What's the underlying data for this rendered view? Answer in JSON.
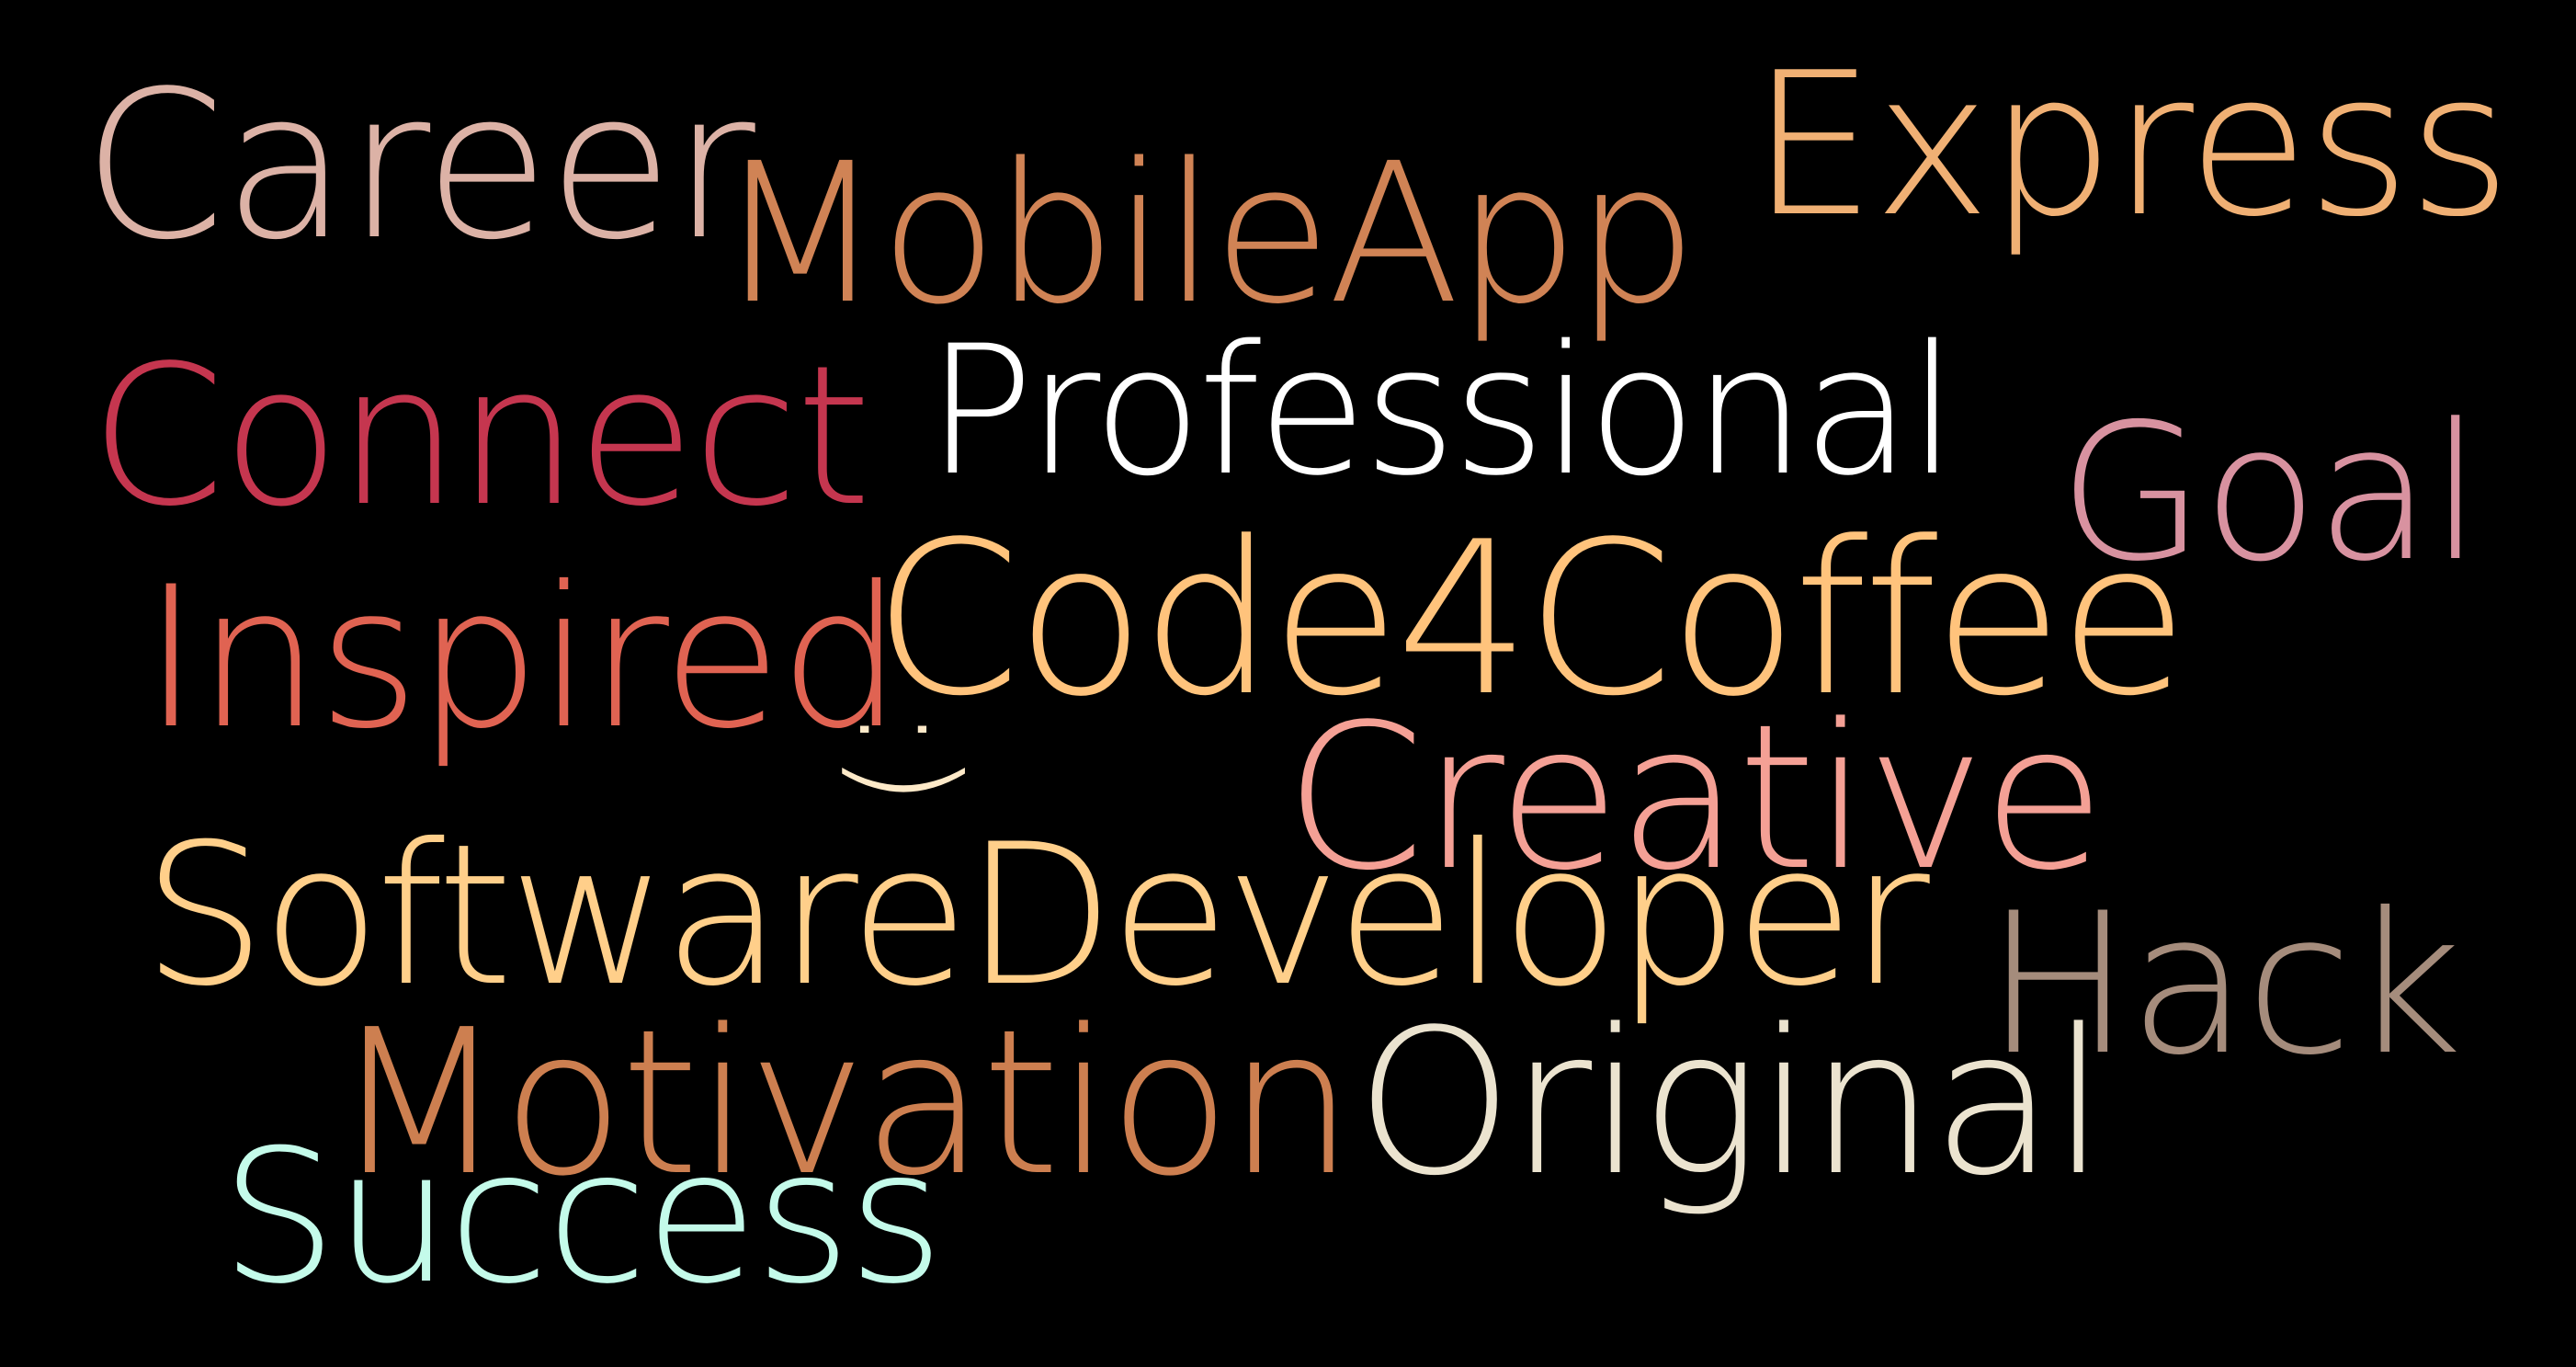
{
  "background_color": "#000000",
  "words": {
    "career": {
      "text": "Career",
      "color": "#dcb2a6"
    },
    "mobileapp": {
      "text": "MobileApp",
      "color": "#d08355"
    },
    "express": {
      "text": "Express",
      "color": "#f0b074"
    },
    "connect": {
      "text": "Connect",
      "color": "#c5364f"
    },
    "professional": {
      "text": "Professional",
      "color": "#ffffff"
    },
    "goal": {
      "text": "Goal",
      "color": "#d892a0"
    },
    "inspired": {
      "text": "Inspired",
      "color": "#e06352"
    },
    "code4coffee": {
      "text": "Code4Coffee",
      "color": "#ffc37c"
    },
    "smiley": {
      "text": ":)",
      "color": "#fde9c8"
    },
    "creative": {
      "text": "Creative",
      "color": "#f4a095"
    },
    "softwaredev": {
      "text": "SoftwareDeveloper",
      "color": "#ffcf8a"
    },
    "hack": {
      "text": "Hack",
      "color": "#a58c7c"
    },
    "motivation": {
      "text": "Motivation",
      "color": "#cd7f50"
    },
    "original": {
      "text": "Original",
      "color": "#ebe3cf"
    },
    "success": {
      "text": "Success",
      "color": "#c4fbea"
    }
  }
}
